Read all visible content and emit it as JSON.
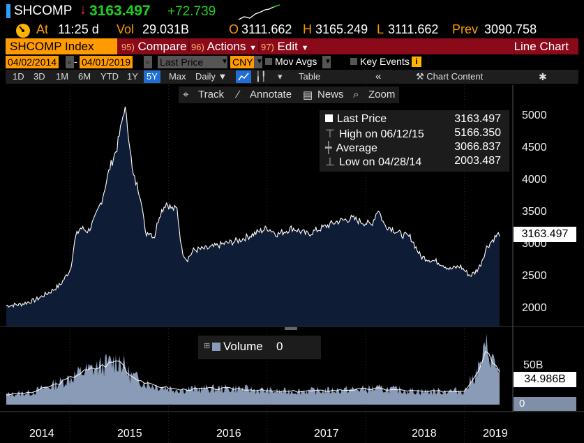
{
  "header": {
    "ticker": "SHCOMP",
    "last": "3163.497",
    "change": "+72.739",
    "at_label": "At",
    "time": "11:25 d",
    "vol_label": "Vol",
    "vol": "29.031B",
    "open_label": "O",
    "open": "3111.662",
    "high_label": "H",
    "high": "3165.249",
    "low_label": "L",
    "low": "3111.662",
    "prev_label": "Prev",
    "prev": "3090.758"
  },
  "menubar": {
    "index": "SHCOMP Index",
    "compare_num": "95)",
    "compare": "Compare",
    "actions_num": "96)",
    "actions": "Actions",
    "edit_num": "97)",
    "edit": "Edit",
    "chart_type": "Line Chart"
  },
  "controls": {
    "start_date": "04/02/2014",
    "end_date": "04/01/2019",
    "field": "Last Price",
    "currency": "CNY",
    "mov_avgs": "Mov Avgs",
    "key_events": "Key Events",
    "info_icon": "i"
  },
  "ranges": {
    "items": [
      "1D",
      "3D",
      "1M",
      "6M",
      "YTD",
      "1Y",
      "5Y",
      "Max"
    ],
    "active": "5Y",
    "frequency": "Daily",
    "table": "Table",
    "chart_content": "Chart Content"
  },
  "toolbar": {
    "track": "Track",
    "annotate": "Annotate",
    "news": "News",
    "zoom": "Zoom"
  },
  "legend": {
    "last_label": "Last Price",
    "last_value": "3163.497",
    "high_label": "High on 06/12/15",
    "high_value": "5166.350",
    "avg_label": "Average",
    "avg_value": "3066.837",
    "low_label": "Low on 04/28/14",
    "low_value": "2003.487"
  },
  "price_axis": [
    "5000",
    "4500",
    "4000",
    "3500",
    "3000",
    "2500",
    "2000"
  ],
  "price_tag": "3163.497",
  "volume": {
    "label": "Volume",
    "value": "0",
    "axis_label": "50B",
    "tag": "34.986B",
    "zero": "0"
  },
  "x_axis": [
    "2014",
    "2015",
    "2016",
    "2017",
    "2018",
    "2019"
  ],
  "colors": {
    "up": "#1fd11f",
    "down": "#ff3030",
    "accent": "#ff9a00",
    "menubar": "#8b0a1a",
    "area": "#0f1c36",
    "volume": "#8a9bb8"
  },
  "chart_data": [
    {
      "type": "area",
      "ylim": [
        1700,
        5300
      ],
      "x": [
        2014.25,
        2014.4,
        2014.55,
        2014.7,
        2014.8,
        2014.9,
        2014.95,
        2015.0,
        2015.08,
        2015.15,
        2015.22,
        2015.3,
        2015.37,
        2015.42,
        2015.45,
        2015.5,
        2015.53,
        2015.58,
        2015.62,
        2015.66,
        2015.7,
        2015.75,
        2015.8,
        2015.87,
        2015.93,
        2015.98,
        2016.03,
        2016.08,
        2016.15,
        2016.3,
        2016.45,
        2016.6,
        2016.75,
        2016.9,
        2017.0,
        2017.15,
        2017.3,
        2017.45,
        2017.6,
        2017.75,
        2017.85,
        2017.95,
        2018.02,
        2018.08,
        2018.15,
        2018.25,
        2018.35,
        2018.45,
        2018.55,
        2018.65,
        2018.75,
        2018.85,
        2018.95,
        2019.0,
        2019.05,
        2019.12,
        2019.2,
        2019.25
      ],
      "values": [
        2030,
        2050,
        2120,
        2250,
        2360,
        2600,
        3100,
        3250,
        3200,
        3400,
        3700,
        4200,
        4500,
        4900,
        5166,
        4600,
        4100,
        3900,
        3700,
        3150,
        3200,
        3100,
        3450,
        3650,
        3550,
        3550,
        2900,
        2750,
        2900,
        2930,
        3000,
        3050,
        3150,
        3250,
        3150,
        3250,
        3150,
        3250,
        3350,
        3400,
        3350,
        3300,
        3550,
        3300,
        3250,
        3150,
        3100,
        2800,
        2750,
        2700,
        2600,
        2650,
        2500,
        2550,
        2650,
        2950,
        3100,
        3163
      ]
    },
    {
      "type": "area",
      "ylim": [
        0,
        70
      ],
      "x": [
        2014.25,
        2014.5,
        2014.8,
        2015.0,
        2015.2,
        2015.4,
        2015.5,
        2015.7,
        2016.0,
        2016.3,
        2016.6,
        2017.0,
        2017.5,
        2018.0,
        2018.5,
        2018.9,
        2019.05,
        2019.12,
        2019.2,
        2019.25
      ],
      "values": [
        10,
        12,
        22,
        32,
        38,
        45,
        30,
        20,
        15,
        16,
        16,
        13,
        14,
        16,
        13,
        14,
        38,
        58,
        40,
        35
      ]
    }
  ]
}
